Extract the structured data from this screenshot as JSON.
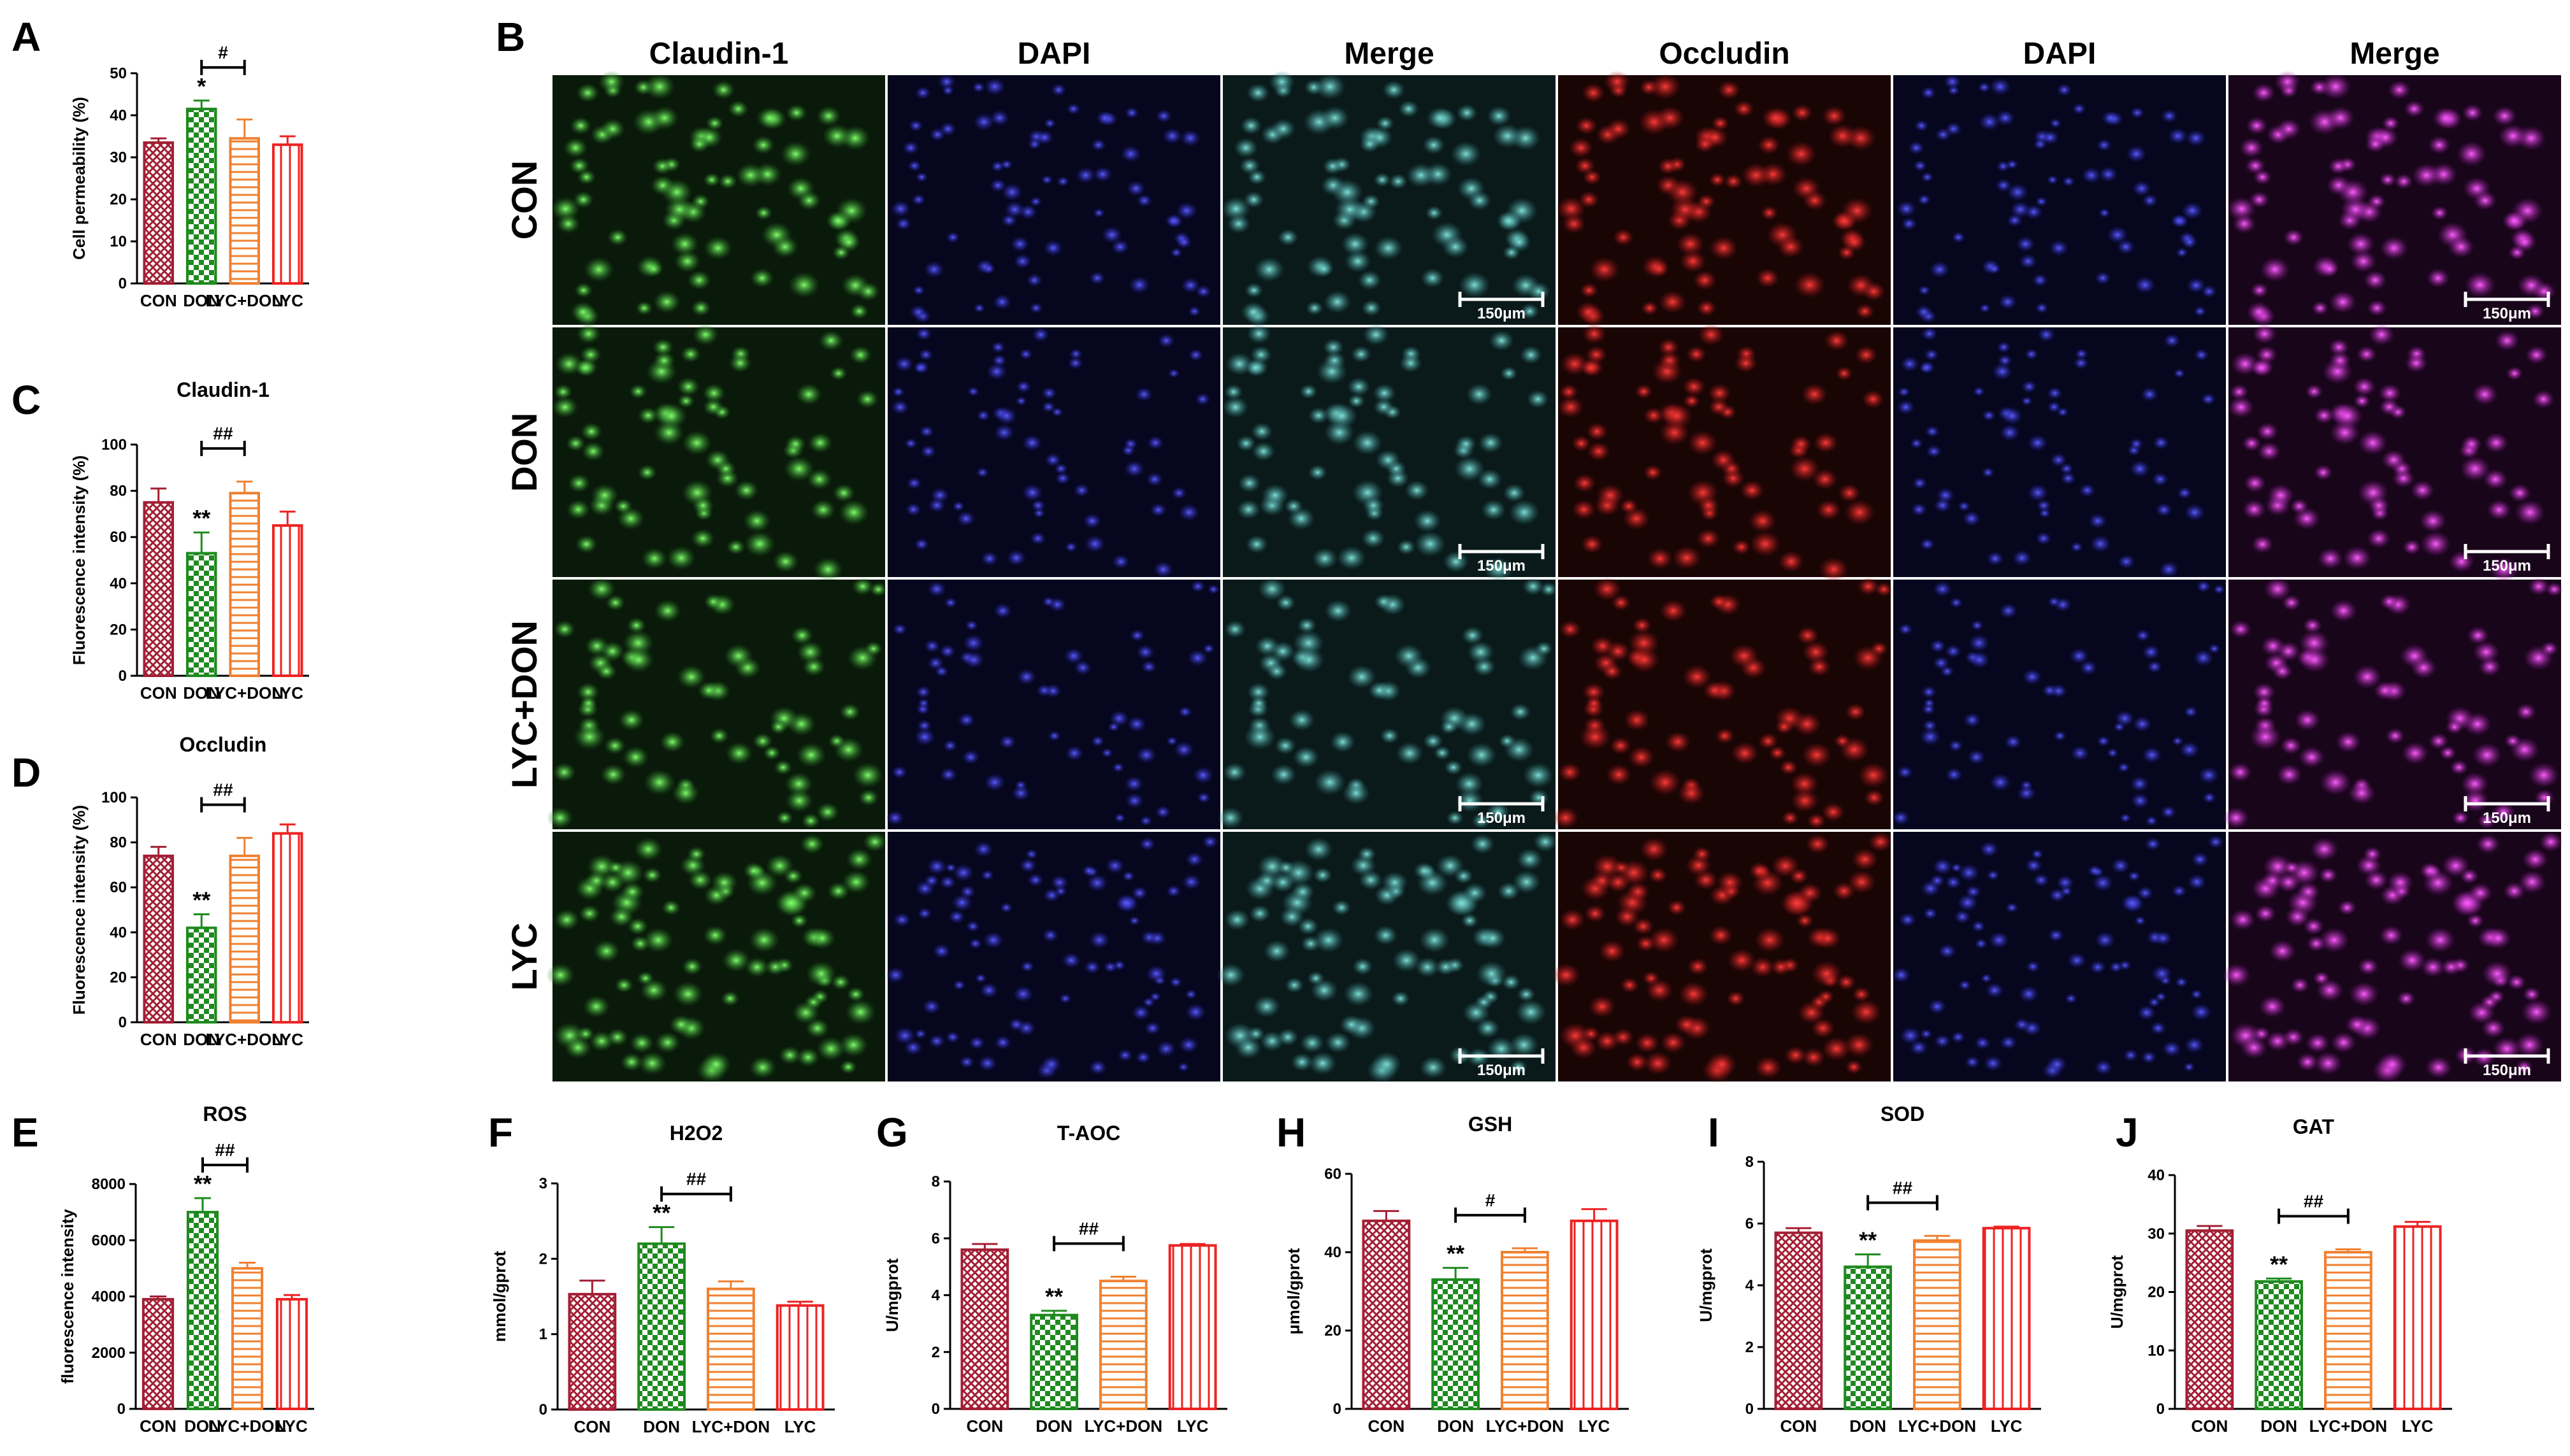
{
  "colors": {
    "CON": "#a31f34",
    "DON": "#1e8a1e",
    "LYC+DON": "#f08030",
    "LYC": "#ee2222",
    "channel_green": "#2fa12f",
    "channel_blue": "#2a2ad8",
    "channel_cyan": "#3aa6a0",
    "channel_red": "#d81a1a",
    "channel_magenta": "#c41ed0"
  },
  "microscopy": {
    "panel": "B",
    "columns": [
      "Claudin-1",
      "DAPI",
      "Merge",
      "Occludin",
      "DAPI",
      "Merge"
    ],
    "rows": [
      "CON",
      "DON",
      "LYC+DON",
      "LYC"
    ],
    "scale_bar": "150μm"
  },
  "chart_data": [
    {
      "panel": "A",
      "type": "bar",
      "title": "",
      "ylabel": "Cell permeability (%)",
      "xlabel": "",
      "categories": [
        "CON",
        "DON",
        "LYC+DON",
        "LYC"
      ],
      "values": [
        33.5,
        41.5,
        34.5,
        33.0
      ],
      "errors": [
        1.0,
        2.0,
        4.5,
        2.0
      ],
      "ylim": [
        0,
        50
      ],
      "yticks": [
        0,
        10,
        20,
        30,
        40,
        50
      ],
      "sig": [
        "",
        "*",
        "",
        ""
      ],
      "bracket": {
        "from": 1,
        "to": 2,
        "label": "#"
      }
    },
    {
      "panel": "C",
      "type": "bar",
      "title": "Claudin-1",
      "ylabel": "Fluorescence intensity (%)",
      "xlabel": "",
      "categories": [
        "CON",
        "DON",
        "LYC+DON",
        "LYC"
      ],
      "values": [
        75,
        53,
        79,
        65
      ],
      "errors": [
        6,
        9,
        5,
        6
      ],
      "ylim": [
        0,
        100
      ],
      "yticks": [
        0,
        20,
        40,
        60,
        80,
        100
      ],
      "sig": [
        "",
        "**",
        "",
        ""
      ],
      "bracket": {
        "from": 1,
        "to": 2,
        "label": "##"
      }
    },
    {
      "panel": "D",
      "type": "bar",
      "title": "Occludin",
      "ylabel": "Fluorescence intensity (%)",
      "xlabel": "",
      "categories": [
        "CON",
        "DON",
        "LYC+DON",
        "LYC"
      ],
      "values": [
        74,
        42,
        74,
        84
      ],
      "errors": [
        4,
        6,
        8,
        4
      ],
      "ylim": [
        0,
        100
      ],
      "yticks": [
        0,
        20,
        40,
        60,
        80,
        100
      ],
      "sig": [
        "",
        "**",
        "",
        ""
      ],
      "bracket": {
        "from": 1,
        "to": 2,
        "label": "##"
      }
    },
    {
      "panel": "E",
      "type": "bar",
      "title": "ROS",
      "ylabel": "fluorescence intensity",
      "xlabel": "",
      "categories": [
        "CON",
        "DON",
        "LYC+DON",
        "LYC"
      ],
      "values": [
        3900,
        7000,
        5000,
        3900
      ],
      "errors": [
        100,
        500,
        200,
        150
      ],
      "ylim": [
        0,
        8000
      ],
      "yticks": [
        0,
        2000,
        4000,
        6000,
        8000
      ],
      "sig": [
        "",
        "**",
        "",
        ""
      ],
      "bracket": {
        "from": 1,
        "to": 2,
        "label": "##"
      }
    },
    {
      "panel": "F",
      "type": "bar",
      "title": "H2O2",
      "ylabel": "mmol/gprot",
      "xlabel": "",
      "categories": [
        "CON",
        "DON",
        "LYC+DON",
        "LYC"
      ],
      "values": [
        1.53,
        2.2,
        1.6,
        1.38
      ],
      "errors": [
        0.18,
        0.22,
        0.1,
        0.05
      ],
      "ylim": [
        0,
        3
      ],
      "yticks": [
        0,
        1,
        2,
        3
      ],
      "sig": [
        "",
        "**",
        "",
        ""
      ],
      "bracket": {
        "from": 1,
        "to": 2,
        "label": "##"
      }
    },
    {
      "panel": "G",
      "type": "bar",
      "title": "T-AOC",
      "ylabel": "U/mgprot",
      "xlabel": "",
      "categories": [
        "CON",
        "DON",
        "LYC+DON",
        "LYC"
      ],
      "values": [
        5.6,
        3.3,
        4.5,
        5.75
      ],
      "errors": [
        0.2,
        0.15,
        0.15,
        0.05
      ],
      "ylim": [
        0,
        8
      ],
      "yticks": [
        0,
        2,
        4,
        6,
        8
      ],
      "sig": [
        "",
        "**",
        "",
        ""
      ],
      "bracket": {
        "from": 1,
        "to": 2,
        "label": "##"
      }
    },
    {
      "panel": "H",
      "type": "bar",
      "title": "GSH",
      "ylabel": "μmol/gprot",
      "xlabel": "",
      "categories": [
        "CON",
        "DON",
        "LYC+DON",
        "LYC"
      ],
      "values": [
        48,
        33,
        40,
        48
      ],
      "errors": [
        2.5,
        3,
        1,
        3
      ],
      "ylim": [
        0,
        60
      ],
      "yticks": [
        0,
        20,
        40,
        60
      ],
      "sig": [
        "",
        "**",
        "",
        ""
      ],
      "bracket": {
        "from": 1,
        "to": 2,
        "label": "#"
      }
    },
    {
      "panel": "I",
      "type": "bar",
      "title": "SOD",
      "ylabel": "U/mgprot",
      "xlabel": "",
      "categories": [
        "CON",
        "DON",
        "LYC+DON",
        "LYC"
      ],
      "values": [
        5.7,
        4.6,
        5.45,
        5.85
      ],
      "errors": [
        0.15,
        0.4,
        0.15,
        0.05
      ],
      "ylim": [
        0,
        8
      ],
      "yticks": [
        0,
        2,
        4,
        6,
        8
      ],
      "sig": [
        "",
        "**",
        "",
        ""
      ],
      "bracket": {
        "from": 1,
        "to": 2,
        "label": "##"
      }
    },
    {
      "panel": "J",
      "type": "bar",
      "title": "GAT",
      "ylabel": "U/mgprot",
      "xlabel": "",
      "categories": [
        "CON",
        "DON",
        "LYC+DON",
        "LYC"
      ],
      "values": [
        30.5,
        21.8,
        26.8,
        31.2
      ],
      "errors": [
        0.8,
        0.5,
        0.5,
        0.8
      ],
      "ylim": [
        0,
        40
      ],
      "yticks": [
        0,
        10,
        20,
        30,
        40
      ],
      "sig": [
        "",
        "**",
        "",
        ""
      ],
      "bracket": {
        "from": 1,
        "to": 2,
        "label": "##"
      }
    }
  ]
}
